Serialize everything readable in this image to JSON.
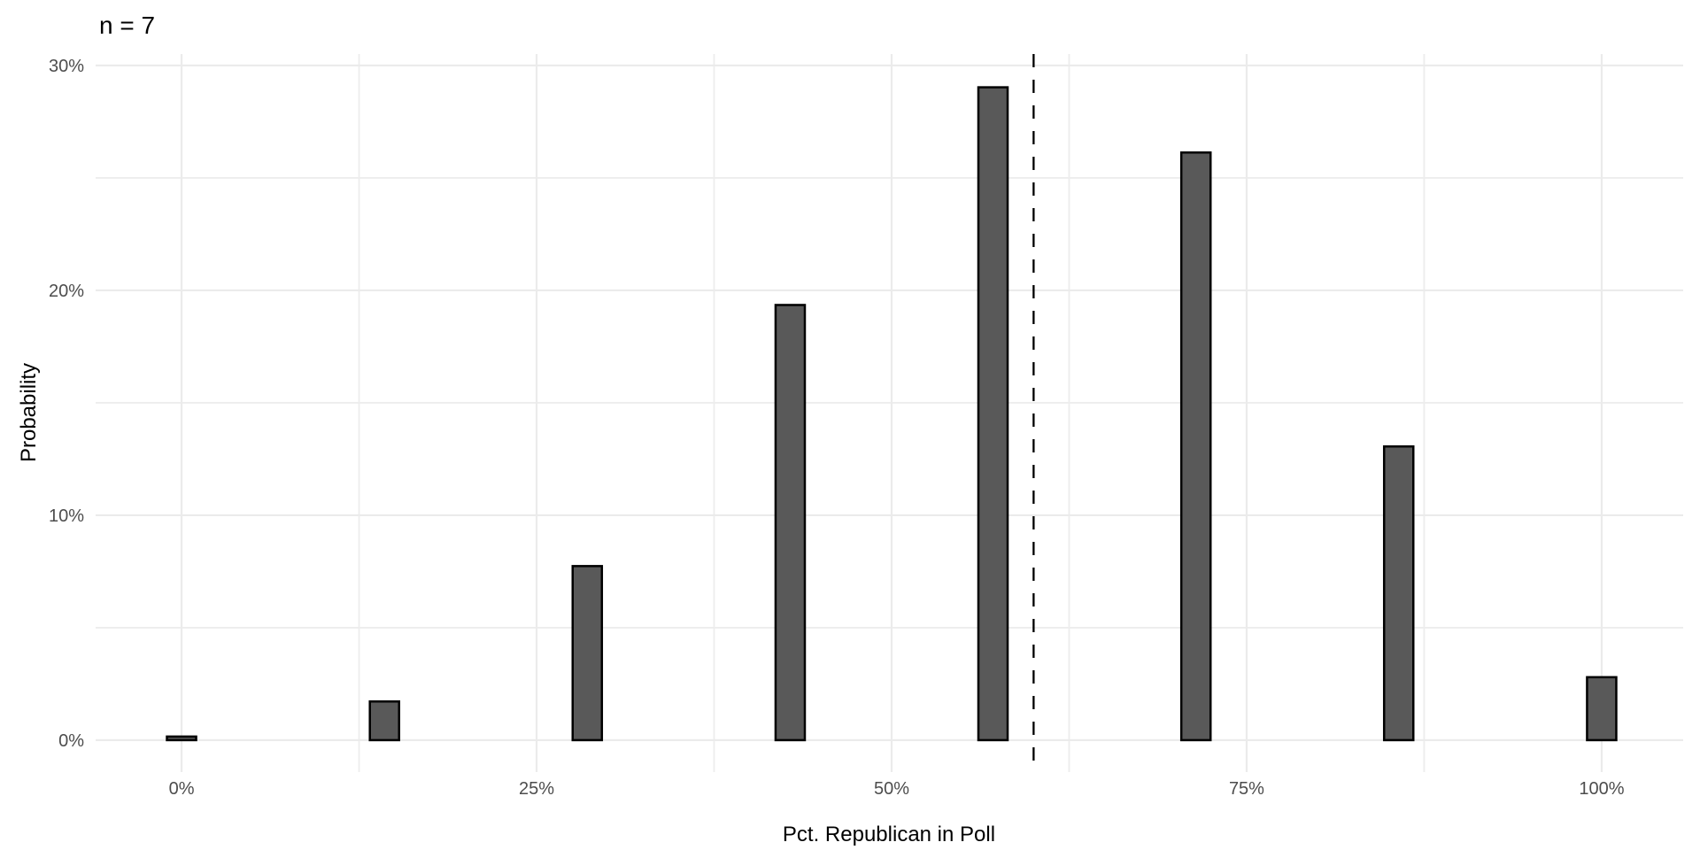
{
  "chart_data": {
    "type": "bar",
    "title": "n = 7",
    "xlabel": "Pct. Republican in Poll",
    "ylabel": "Probability",
    "x": [
      0,
      14.29,
      28.57,
      42.86,
      57.14,
      71.43,
      85.71,
      100
    ],
    "values": [
      0.16,
      1.72,
      7.74,
      19.35,
      29.03,
      26.13,
      13.06,
      2.8
    ],
    "x_unit": "percent",
    "y_unit": "percent",
    "bar_width_x_units": 2.06,
    "reference_line_x": 60,
    "reference_line_style": "dashed",
    "x_ticks": {
      "values": [
        0,
        25,
        50,
        75,
        100
      ],
      "labels": [
        "0%",
        "25%",
        "50%",
        "75%",
        "100%"
      ]
    },
    "y_ticks": {
      "values": [
        0,
        10,
        20,
        30
      ],
      "labels": [
        "0%",
        "10%",
        "20%",
        "30%"
      ]
    },
    "x_minor_gridlines": [
      12.5,
      37.5,
      62.5,
      87.5
    ],
    "y_minor_gridlines": [
      5,
      15,
      25
    ],
    "xlim": [
      -6.05,
      105.74
    ],
    "ylim": [
      -1.42,
      30.51
    ],
    "grid": "on",
    "legend": "none",
    "colors": {
      "background": "#FFFFFF",
      "bar_fill": "#595959",
      "bar_stroke": "#000000",
      "grid_major": "#EBEBEB",
      "grid_minor": "#EDEDED",
      "tick_text": "#4D4D4D",
      "title_text": "#000000",
      "reference_line": "#000000"
    }
  }
}
